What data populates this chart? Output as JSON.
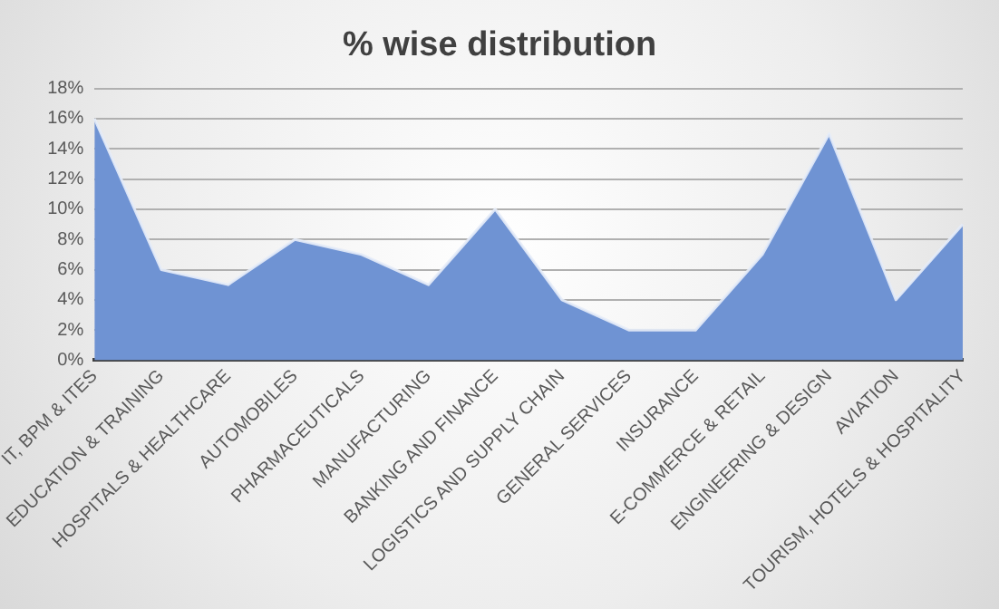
{
  "chart_data": {
    "type": "area",
    "title": "% wise distribution",
    "categories": [
      "IT, BPM & ITES",
      "EDUCATION & TRAINING",
      "HOSPITALS & HEALTHCARE",
      "AUTOMOBILES",
      "PHARMACEUTICALS",
      "MANUFACTURING",
      "BANKING AND FINANCE",
      "LOGISTICS AND SUPPLY CHAIN",
      "GENERAL SERVICES",
      "INSURANCE",
      "E-COMMERCE & RETAIL",
      "ENGINEERING & DESIGN",
      "AVIATION",
      "TOURISM, HOTELS & HOSPITALITY"
    ],
    "series": [
      {
        "color": "#6f93d3",
        "values": [
          16,
          6,
          5,
          8,
          7,
          5,
          10,
          4,
          2,
          2,
          7,
          15,
          4,
          9
        ]
      }
    ],
    "ylim": [
      0,
      18
    ],
    "yticks": [
      {
        "value": 0,
        "label": "0%"
      },
      {
        "value": 2,
        "label": "2%"
      },
      {
        "value": 4,
        "label": "4%"
      },
      {
        "value": 6,
        "label": "6%"
      },
      {
        "value": 8,
        "label": "8%"
      },
      {
        "value": 10,
        "label": "10%"
      },
      {
        "value": 12,
        "label": "12%"
      },
      {
        "value": 14,
        "label": "14%"
      },
      {
        "value": 16,
        "label": "16%"
      },
      {
        "value": 18,
        "label": "18%"
      }
    ],
    "grid": "y",
    "legend": false
  }
}
